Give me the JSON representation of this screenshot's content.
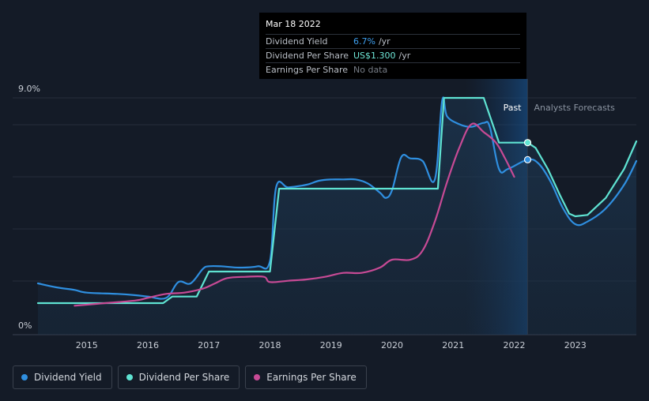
{
  "tooltip": {
    "date": "Mar 18 2022",
    "rows": [
      {
        "label": "Dividend Yield",
        "value": "6.7%",
        "unit": "/yr"
      },
      {
        "label": "Dividend Per Share",
        "value": "US$1.300",
        "unit": "/yr"
      },
      {
        "label": "Earnings Per Share",
        "value": "No data",
        "unit": ""
      }
    ]
  },
  "legend": [
    {
      "label": "Dividend Yield",
      "color": "#2f8fe0"
    },
    {
      "label": "Dividend Per Share",
      "color": "#5fe3d2"
    },
    {
      "label": "Earnings Per Share",
      "color": "#c74a95"
    }
  ],
  "chart_data": {
    "type": "line",
    "x_ticks": [
      "2015",
      "2016",
      "2017",
      "2018",
      "2019",
      "2020",
      "2021",
      "2022",
      "2023"
    ],
    "y_ticks": [
      "0%",
      "9.0%"
    ],
    "ylim": [
      0,
      9.0
    ],
    "xlim": [
      2014.2,
      2024.0
    ],
    "past_label": "Past",
    "forecast_label": "Analysts Forecasts",
    "forecast_start": 2022.22,
    "shade_start": 2021.2,
    "series": [
      {
        "name": "Dividend Yield",
        "color": "#2f8fe0",
        "points": [
          [
            2014.2,
            1.95
          ],
          [
            2014.5,
            1.8
          ],
          [
            2014.8,
            1.7
          ],
          [
            2015.0,
            1.6
          ],
          [
            2015.5,
            1.55
          ],
          [
            2015.8,
            1.5
          ],
          [
            2016.0,
            1.45
          ],
          [
            2016.3,
            1.4
          ],
          [
            2016.5,
            2.0
          ],
          [
            2016.7,
            1.95
          ],
          [
            2016.9,
            2.5
          ],
          [
            2017.0,
            2.6
          ],
          [
            2017.2,
            2.6
          ],
          [
            2017.5,
            2.55
          ],
          [
            2017.8,
            2.6
          ],
          [
            2018.0,
            2.8
          ],
          [
            2018.1,
            5.6
          ],
          [
            2018.3,
            5.6
          ],
          [
            2018.6,
            5.7
          ],
          [
            2018.8,
            5.85
          ],
          [
            2019.0,
            5.9
          ],
          [
            2019.2,
            5.9
          ],
          [
            2019.4,
            5.9
          ],
          [
            2019.6,
            5.75
          ],
          [
            2019.8,
            5.4
          ],
          [
            2019.9,
            5.2
          ],
          [
            2020.0,
            5.5
          ],
          [
            2020.15,
            6.75
          ],
          [
            2020.3,
            6.7
          ],
          [
            2020.5,
            6.6
          ],
          [
            2020.7,
            5.9
          ],
          [
            2020.82,
            8.9
          ],
          [
            2020.9,
            8.3
          ],
          [
            2021.1,
            8.0
          ],
          [
            2021.3,
            7.9
          ],
          [
            2021.5,
            8.05
          ],
          [
            2021.6,
            7.9
          ],
          [
            2021.75,
            6.3
          ],
          [
            2021.9,
            6.3
          ],
          [
            2022.22,
            6.65
          ],
          [
            2022.4,
            6.5
          ],
          [
            2022.6,
            5.8
          ],
          [
            2022.8,
            4.8
          ],
          [
            2023.0,
            4.2
          ],
          [
            2023.2,
            4.3
          ],
          [
            2023.5,
            4.8
          ],
          [
            2023.8,
            5.7
          ],
          [
            2024.0,
            6.6
          ]
        ]
      },
      {
        "name": "Dividend Per Share",
        "color": "#5fe3d2",
        "points": [
          [
            2014.2,
            1.2
          ],
          [
            2016.25,
            1.2
          ],
          [
            2016.4,
            1.45
          ],
          [
            2016.8,
            1.45
          ],
          [
            2017.0,
            2.4
          ],
          [
            2017.5,
            2.4
          ],
          [
            2018.0,
            2.4
          ],
          [
            2018.15,
            5.55
          ],
          [
            2019.0,
            5.55
          ],
          [
            2020.0,
            5.55
          ],
          [
            2020.75,
            5.55
          ],
          [
            2020.85,
            9.0
          ],
          [
            2021.4,
            9.0
          ],
          [
            2021.5,
            9.0
          ],
          [
            2021.75,
            7.3
          ],
          [
            2022.22,
            7.3
          ],
          [
            2022.35,
            7.1
          ],
          [
            2022.55,
            6.3
          ],
          [
            2022.75,
            5.3
          ],
          [
            2022.9,
            4.6
          ],
          [
            2023.0,
            4.5
          ],
          [
            2023.2,
            4.55
          ],
          [
            2023.5,
            5.2
          ],
          [
            2023.8,
            6.3
          ],
          [
            2024.0,
            7.35
          ]
        ]
      },
      {
        "name": "Earnings Per Share",
        "color": "#c74a95",
        "points": [
          [
            2014.8,
            1.1
          ],
          [
            2015.3,
            1.2
          ],
          [
            2015.8,
            1.3
          ],
          [
            2016.0,
            1.4
          ],
          [
            2016.3,
            1.55
          ],
          [
            2016.6,
            1.6
          ],
          [
            2016.9,
            1.75
          ],
          [
            2017.1,
            1.95
          ],
          [
            2017.3,
            2.15
          ],
          [
            2017.6,
            2.2
          ],
          [
            2017.9,
            2.2
          ],
          [
            2018.0,
            2.0
          ],
          [
            2018.3,
            2.05
          ],
          [
            2018.6,
            2.1
          ],
          [
            2018.9,
            2.2
          ],
          [
            2019.2,
            2.35
          ],
          [
            2019.5,
            2.35
          ],
          [
            2019.8,
            2.55
          ],
          [
            2020.0,
            2.85
          ],
          [
            2020.3,
            2.85
          ],
          [
            2020.5,
            3.2
          ],
          [
            2020.7,
            4.3
          ],
          [
            2020.9,
            5.8
          ],
          [
            2021.1,
            7.1
          ],
          [
            2021.3,
            8.0
          ],
          [
            2021.5,
            7.7
          ],
          [
            2021.7,
            7.3
          ],
          [
            2021.85,
            6.7
          ],
          [
            2022.0,
            6.0
          ]
        ]
      }
    ],
    "markers": [
      {
        "series": "Dividend Yield",
        "x": 2022.22,
        "y": 6.65
      },
      {
        "series": "Dividend Per Share",
        "x": 2022.22,
        "y": 7.3
      }
    ]
  }
}
